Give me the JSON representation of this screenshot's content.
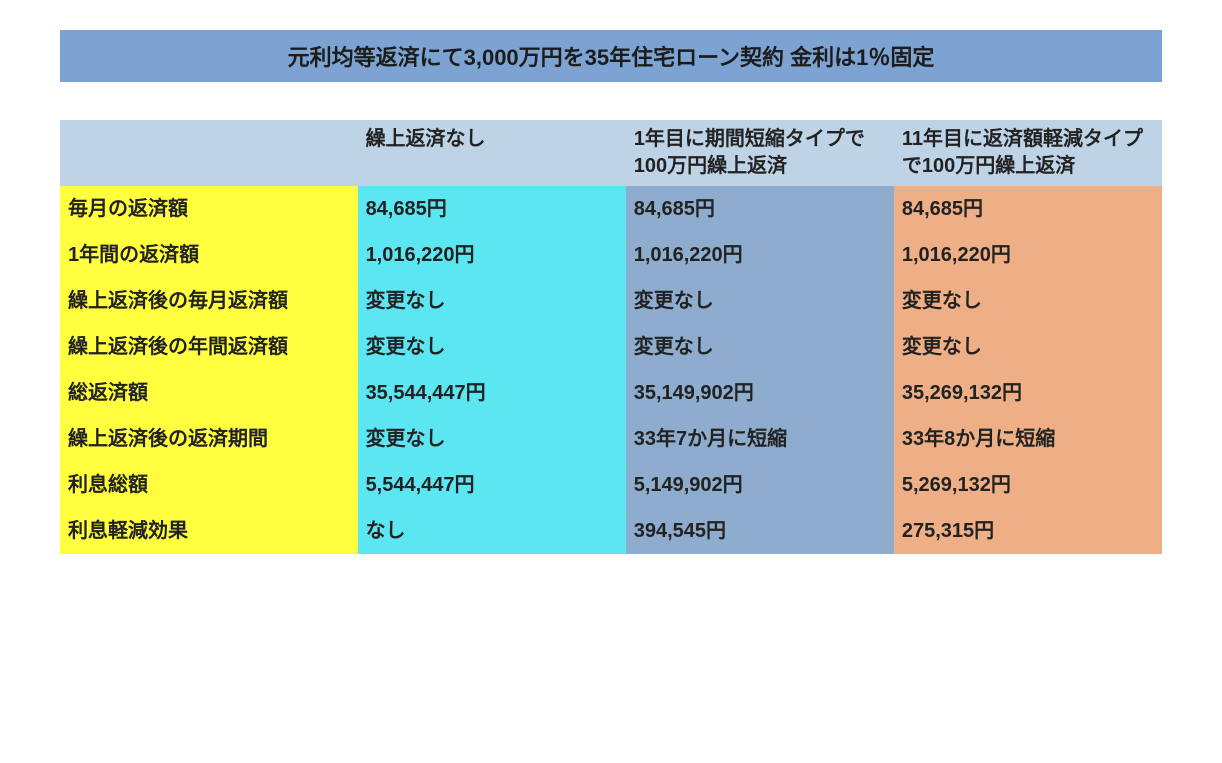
{
  "title": {
    "text": "元利均等返済にて3,000万円を35年住宅ローン契約 金利は1％固定",
    "background_color": "#7ca3d1",
    "text_color": "#1c1c1c",
    "fontsize": 22
  },
  "table": {
    "header_background": "#bfd3e6",
    "header_text_color": "#222222",
    "header_fontsize": 20,
    "label_col_width": "27%",
    "data_col_width": "24.33%",
    "row_label_background": "#ffff3f",
    "row_label_text_color": "#222222",
    "data_fontsize": 20,
    "row_fontsize": 20,
    "columns": [
      {
        "label": "",
        "background_color": "#bfd3e6"
      },
      {
        "label": "繰上返済なし",
        "data_background": "#5be6f2",
        "data_text_color": "#222222"
      },
      {
        "label": "1年目に期間短縮タイプで100万円繰上返済",
        "data_background": "#8eacce",
        "data_text_color": "#222222"
      },
      {
        "label": "11年目に返済額軽減タイプで100万円繰上返済",
        "data_background": "#efaf86",
        "data_text_color": "#222222"
      }
    ],
    "rows": [
      {
        "label": "毎月の返済額",
        "values": [
          "84,685円",
          "84,685円",
          "84,685円"
        ]
      },
      {
        "label": "1年間の返済額",
        "values": [
          "1,016,220円",
          "1,016,220円",
          "1,016,220円"
        ]
      },
      {
        "label": "繰上返済後の毎月返済額",
        "values": [
          "変更なし",
          "変更なし",
          "変更なし"
        ]
      },
      {
        "label": "繰上返済後の年間返済額",
        "values": [
          "変更なし",
          "変更なし",
          "変更なし"
        ]
      },
      {
        "label": "総返済額",
        "values": [
          "35,544,447円",
          "35,149,902円",
          "35,269,132円"
        ]
      },
      {
        "label": "繰上返済後の返済期間",
        "values": [
          "変更なし",
          "33年7か月に短縮",
          "33年8か月に短縮"
        ]
      },
      {
        "label": "利息総額",
        "values": [
          "5,544,447円",
          "5,149,902円",
          "5,269,132円"
        ]
      },
      {
        "label": "利息軽減効果",
        "values": [
          "なし",
          "394,545円",
          "275,315円"
        ]
      }
    ]
  }
}
